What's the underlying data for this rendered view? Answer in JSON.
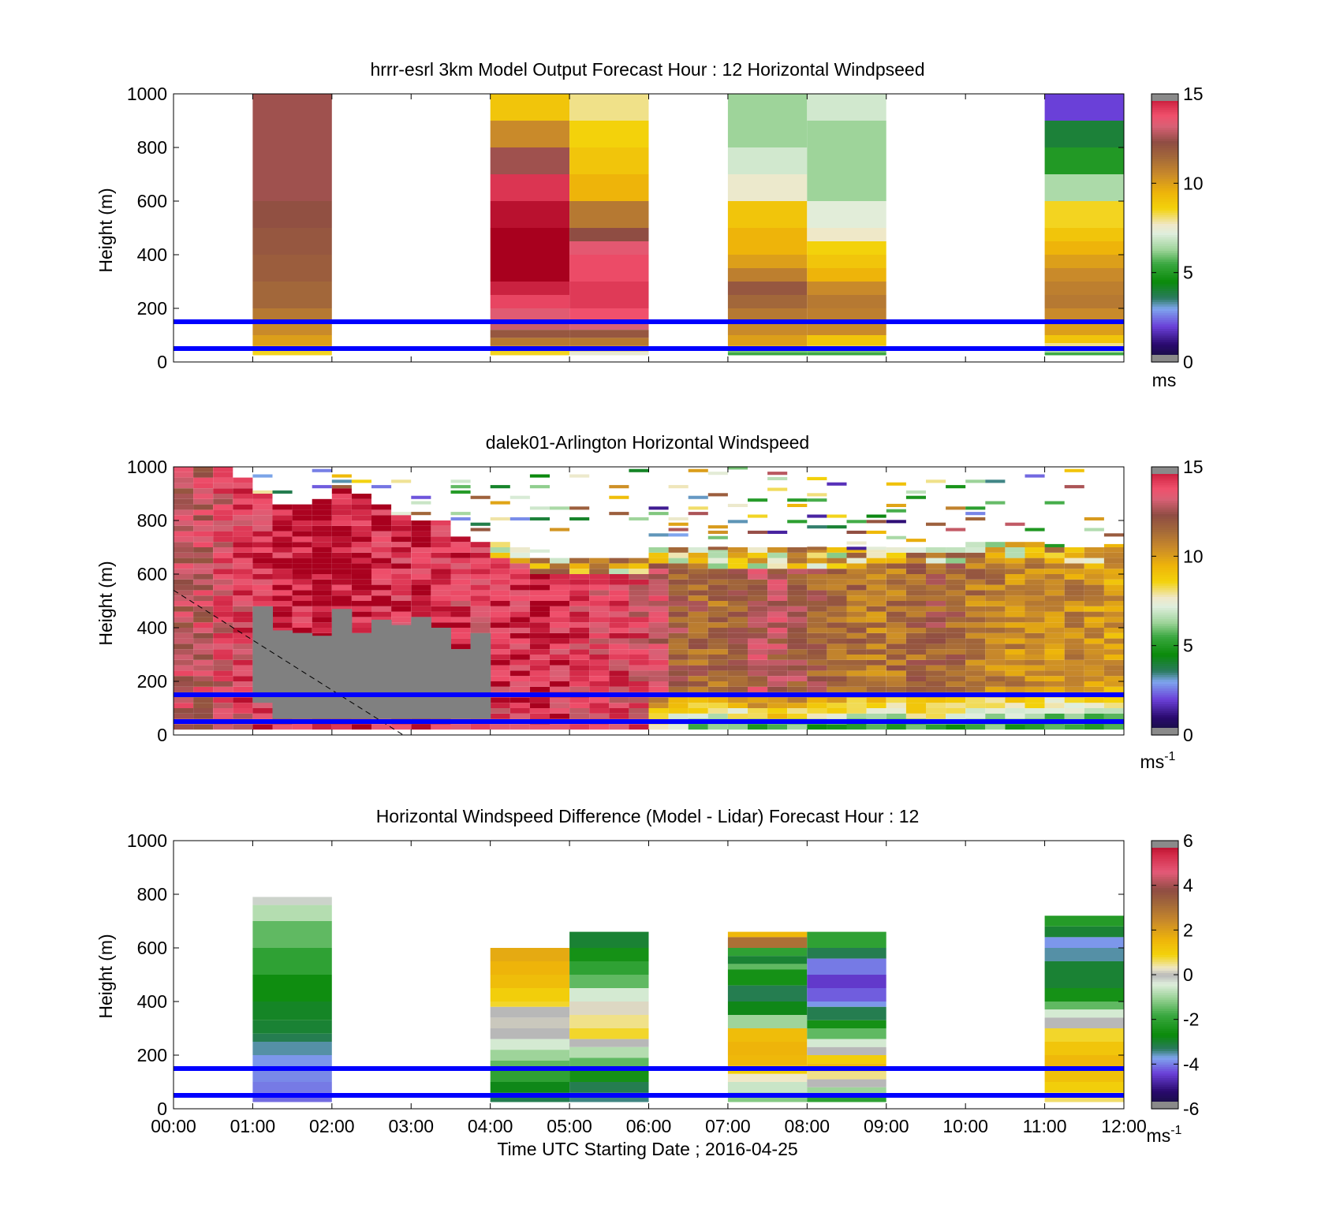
{
  "figure": {
    "time_axis_label": "Time UTC  Starting Date ; 2016-04-25",
    "time_ticks": [
      "00:00",
      "01:00",
      "02:00",
      "03:00",
      "04:00",
      "05:00",
      "06:00",
      "07:00",
      "08:00",
      "09:00",
      "10:00",
      "11:00",
      "12:00"
    ],
    "height_ticks": [
      "0",
      "200",
      "400",
      "600",
      "800",
      "1000"
    ],
    "height_label": "Height (m)",
    "reference_lines_m": [
      50,
      150
    ],
    "reference_line_color": "#0000ff"
  },
  "chart_data": [
    {
      "type": "heatmap",
      "title": "hrrr-esrl 3km Model Output   Forecast Hour : 12 Horizontal Windpseed",
      "xlabel": "",
      "ylabel": "Height (m)",
      "xlim_hours": [
        0,
        12
      ],
      "ylim": [
        0,
        1000
      ],
      "colorbar": {
        "min": 0,
        "max": 15,
        "ticks": [
          "0",
          "5",
          "10",
          "15"
        ],
        "unit": "ms"
      },
      "columns": [
        {
          "start": 1,
          "end": 2,
          "bottom": 25,
          "levels": [
            [
              1000,
              12.5
            ],
            [
              800,
              12.5
            ],
            [
              600,
              12.2
            ],
            [
              500,
              12.0
            ],
            [
              400,
              11.8
            ],
            [
              300,
              11.5
            ],
            [
              200,
              11.0
            ],
            [
              150,
              10.5
            ],
            [
              100,
              10.0
            ],
            [
              60,
              9.5
            ],
            [
              40,
              8.5
            ]
          ]
        },
        {
          "start": 4,
          "end": 5,
          "bottom": 25,
          "levels": [
            [
              1000,
              9.0
            ],
            [
              900,
              10.5
            ],
            [
              800,
              12.5
            ],
            [
              700,
              14.3
            ],
            [
              600,
              14.8
            ],
            [
              500,
              15.0
            ],
            [
              400,
              15.0
            ],
            [
              300,
              14.6
            ],
            [
              250,
              14.0
            ],
            [
              200,
              13.4
            ],
            [
              150,
              13.0
            ],
            [
              120,
              12.0
            ],
            [
              90,
              11.0
            ],
            [
              60,
              10.0
            ],
            [
              40,
              8.5
            ]
          ]
        },
        {
          "start": 5,
          "end": 6,
          "bottom": 25,
          "levels": [
            [
              1000,
              8.0
            ],
            [
              900,
              8.6
            ],
            [
              800,
              9.0
            ],
            [
              700,
              9.5
            ],
            [
              600,
              11.0
            ],
            [
              500,
              12.3
            ],
            [
              450,
              13.5
            ],
            [
              400,
              13.9
            ],
            [
              300,
              14.2
            ],
            [
              200,
              13.8
            ],
            [
              150,
              13.2
            ],
            [
              120,
              12.0
            ],
            [
              90,
              11.0
            ],
            [
              60,
              10.0
            ],
            [
              40,
              7.5
            ]
          ]
        },
        {
          "start": 7,
          "end": 8,
          "bottom": 25,
          "levels": [
            [
              1000,
              6.3
            ],
            [
              900,
              6.3
            ],
            [
              800,
              7.0
            ],
            [
              700,
              7.6
            ],
            [
              600,
              9.0
            ],
            [
              500,
              9.5
            ],
            [
              400,
              10.0
            ],
            [
              350,
              10.8
            ],
            [
              300,
              12.0
            ],
            [
              250,
              11.5
            ],
            [
              200,
              11.0
            ],
            [
              150,
              10.5
            ],
            [
              100,
              10.0
            ],
            [
              60,
              9.0
            ],
            [
              45,
              6.0
            ],
            [
              35,
              5.5
            ]
          ]
        },
        {
          "start": 8,
          "end": 9,
          "bottom": 25,
          "levels": [
            [
              1000,
              7.0
            ],
            [
              900,
              6.3
            ],
            [
              800,
              6.3
            ],
            [
              600,
              7.3
            ],
            [
              500,
              7.7
            ],
            [
              450,
              8.6
            ],
            [
              400,
              9.0
            ],
            [
              350,
              9.5
            ],
            [
              300,
              10.5
            ],
            [
              250,
              11.0
            ],
            [
              200,
              10.8
            ],
            [
              150,
              10.5
            ],
            [
              100,
              9.0
            ],
            [
              60,
              8.0
            ],
            [
              45,
              6.0
            ],
            [
              35,
              5.5
            ]
          ]
        },
        {
          "start": 11,
          "end": 12,
          "bottom": 25,
          "levels": [
            [
              1000,
              2.0
            ],
            [
              900,
              4.0
            ],
            [
              800,
              5.0
            ],
            [
              700,
              6.5
            ],
            [
              600,
              8.5
            ],
            [
              500,
              9.0
            ],
            [
              450,
              9.5
            ],
            [
              400,
              10.0
            ],
            [
              350,
              10.5
            ],
            [
              300,
              10.8
            ],
            [
              250,
              11.0
            ],
            [
              200,
              10.5
            ],
            [
              150,
              10.0
            ],
            [
              100,
              9.0
            ],
            [
              70,
              8.0
            ],
            [
              45,
              6.5
            ],
            [
              35,
              5.5
            ]
          ]
        }
      ]
    },
    {
      "type": "heatmap",
      "title": "dalek01-Arlington  Horizontal Windspeed",
      "xlabel": "",
      "ylabel": "Height (m)",
      "xlim_hours": [
        0,
        12
      ],
      "ylim": [
        0,
        1000
      ],
      "colorbar": {
        "min": 0,
        "max": 15,
        "ticks": [
          "0",
          "5",
          "10",
          "15"
        ],
        "unit": "ms",
        "unit_sup": "-1"
      },
      "time_bins": [
        0,
        0.25,
        0.5,
        0.75,
        1,
        1.25,
        1.5,
        1.75,
        2,
        2.25,
        2.5,
        2.75,
        3,
        3.25,
        3.5,
        3.75,
        4,
        4.25,
        4.5,
        4.75,
        5,
        5.25,
        5.5,
        5.75,
        6,
        6.25,
        6.5,
        6.75,
        7,
        7.25,
        7.5,
        7.75,
        8,
        8.25,
        8.5,
        8.75,
        9,
        9.25,
        9.5,
        9.75,
        10,
        10.25,
        10.5,
        10.75,
        11,
        11.25,
        11.5,
        11.75
      ],
      "bin_width_hours": 0.25,
      "column_top_m": [
        1000,
        1000,
        1000,
        950,
        900,
        860,
        860,
        880,
        920,
        900,
        860,
        820,
        800,
        800,
        740,
        720,
        720,
        700,
        660,
        660,
        660,
        660,
        660,
        660,
        700,
        700,
        700,
        690,
        690,
        690,
        690,
        690,
        690,
        690,
        690,
        690,
        690,
        700,
        700,
        700,
        720,
        720,
        720,
        720,
        700,
        700,
        700,
        700
      ],
      "column_speed": [
        13.0,
        13.0,
        13.5,
        13.8,
        14.3,
        14.6,
        14.6,
        14.8,
        14.8,
        14.6,
        14.4,
        14.2,
        14.5,
        14.3,
        14.0,
        13.8,
        14.0,
        14.2,
        14.5,
        14.2,
        14.0,
        13.8,
        13.8,
        13.6,
        13.0,
        12.0,
        11.6,
        11.4,
        11.8,
        12.6,
        12.6,
        12.2,
        11.8,
        11.5,
        11.2,
        11.0,
        11.2,
        11.5,
        11.8,
        11.6,
        11.0,
        10.8,
        10.6,
        10.8,
        10.5,
        10.5,
        10.2,
        10.0
      ],
      "masked_gray": [
        {
          "start": 1,
          "end": 1.25,
          "bottom": 120,
          "top": 480
        },
        {
          "start": 1.25,
          "end": 1.5,
          "bottom": 60,
          "top": 390
        },
        {
          "start": 1.5,
          "end": 1.75,
          "bottom": 60,
          "top": 380
        },
        {
          "start": 1.75,
          "end": 2,
          "bottom": 60,
          "top": 370
        },
        {
          "start": 2,
          "end": 2.25,
          "bottom": 60,
          "top": 470
        },
        {
          "start": 2.25,
          "end": 2.5,
          "bottom": 60,
          "top": 380
        },
        {
          "start": 2.5,
          "end": 2.75,
          "bottom": 60,
          "top": 430
        },
        {
          "start": 2.75,
          "end": 3,
          "bottom": 60,
          "top": 410
        },
        {
          "start": 3,
          "end": 3.25,
          "bottom": 60,
          "top": 440
        },
        {
          "start": 3.25,
          "end": 3.5,
          "bottom": 60,
          "top": 400
        },
        {
          "start": 3.5,
          "end": 3.75,
          "bottom": 60,
          "top": 320
        },
        {
          "start": 3.75,
          "end": 4,
          "bottom": 60,
          "top": 380
        }
      ],
      "dashed_line": {
        "from": [
          0,
          540
        ],
        "to": [
          2.9,
          0
        ]
      }
    },
    {
      "type": "heatmap",
      "title": "Horizontal Windspeed Difference (Model - Lidar) Forecast Hour : 12",
      "xlabel": "Time UTC  Starting Date ; 2016-04-25",
      "ylabel": "Height (m)",
      "xlim_hours": [
        0,
        12
      ],
      "ylim": [
        0,
        1000
      ],
      "colorbar": {
        "min": -6,
        "max": 6,
        "ticks": [
          "-6",
          "-4",
          "-2",
          "0",
          "2",
          "4",
          "6"
        ],
        "unit": "ms",
        "unit_sup": "-1"
      },
      "columns": [
        {
          "start": 1,
          "end": 2,
          "bottom": 25,
          "levels": [
            [
              790,
              -0.2
            ],
            [
              760,
              -0.8
            ],
            [
              700,
              -1.5
            ],
            [
              600,
              -2.0
            ],
            [
              500,
              -2.6
            ],
            [
              400,
              -2.9
            ],
            [
              330,
              -3.0
            ],
            [
              280,
              -3.2
            ],
            [
              250,
              -3.5
            ],
            [
              200,
              -3.8
            ],
            [
              150,
              -3.9
            ],
            [
              100,
              -4.0
            ],
            [
              60,
              -4.1
            ]
          ]
        },
        {
          "start": 4,
          "end": 5,
          "bottom": 25,
          "levels": [
            [
              600,
              1.8
            ],
            [
              550,
              1.6
            ],
            [
              500,
              1.4
            ],
            [
              450,
              1.0
            ],
            [
              400,
              0.8
            ],
            [
              380,
              0.0
            ],
            [
              340,
              0.1
            ],
            [
              300,
              0.0
            ],
            [
              260,
              -0.5
            ],
            [
              220,
              -1.0
            ],
            [
              180,
              -1.5
            ],
            [
              150,
              -2.0
            ],
            [
              100,
              -2.8
            ],
            [
              60,
              -3.2
            ]
          ]
        },
        {
          "start": 5,
          "end": 6,
          "bottom": 25,
          "levels": [
            [
              660,
              -3.0
            ],
            [
              600,
              -2.5
            ],
            [
              550,
              -2.0
            ],
            [
              500,
              -1.5
            ],
            [
              450,
              -0.5
            ],
            [
              400,
              0.2
            ],
            [
              350,
              0.5
            ],
            [
              300,
              0.8
            ],
            [
              260,
              0.0
            ],
            [
              230,
              -0.8
            ],
            [
              190,
              -1.5
            ],
            [
              150,
              -2.5
            ],
            [
              100,
              -3.2
            ],
            [
              60,
              -3.4
            ]
          ]
        },
        {
          "start": 7,
          "end": 8,
          "bottom": 25,
          "levels": [
            [
              660,
              1.5
            ],
            [
              640,
              3.0
            ],
            [
              600,
              -2.0
            ],
            [
              570,
              -3.0
            ],
            [
              540,
              -1.5
            ],
            [
              520,
              -2.5
            ],
            [
              460,
              -3.2
            ],
            [
              400,
              -2.8
            ],
            [
              350,
              -1.0
            ],
            [
              300,
              1.4
            ],
            [
              250,
              1.6
            ],
            [
              200,
              1.5
            ],
            [
              160,
              1.0
            ],
            [
              130,
              0.3
            ],
            [
              100,
              -0.6
            ],
            [
              60,
              -1.2
            ]
          ]
        },
        {
          "start": 8,
          "end": 9,
          "bottom": 25,
          "levels": [
            [
              660,
              -2.0
            ],
            [
              600,
              -3.2
            ],
            [
              560,
              -4.0
            ],
            [
              500,
              -4.5
            ],
            [
              450,
              -4.2
            ],
            [
              400,
              -3.8
            ],
            [
              380,
              -3.2
            ],
            [
              330,
              -2.5
            ],
            [
              300,
              -1.5
            ],
            [
              260,
              -0.5
            ],
            [
              230,
              0.0
            ],
            [
              200,
              1.0
            ],
            [
              170,
              1.4
            ],
            [
              140,
              0.5
            ],
            [
              110,
              0.0
            ],
            [
              80,
              -1.0
            ],
            [
              55,
              -2.0
            ]
          ]
        },
        {
          "start": 11,
          "end": 12,
          "bottom": 25,
          "levels": [
            [
              720,
              -2.2
            ],
            [
              680,
              -3.0
            ],
            [
              640,
              -3.8
            ],
            [
              600,
              -3.5
            ],
            [
              550,
              -3.0
            ],
            [
              500,
              -3.0
            ],
            [
              450,
              -2.5
            ],
            [
              400,
              -1.5
            ],
            [
              370,
              -0.5
            ],
            [
              340,
              0.0
            ],
            [
              300,
              0.8
            ],
            [
              250,
              1.2
            ],
            [
              200,
              1.5
            ],
            [
              150,
              1.3
            ],
            [
              100,
              1.0
            ],
            [
              60,
              0.6
            ]
          ]
        }
      ]
    }
  ]
}
